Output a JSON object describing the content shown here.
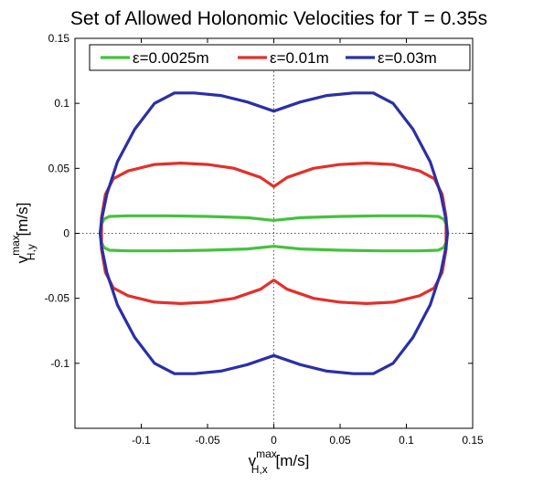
{
  "chart_data": {
    "type": "line",
    "title": "Set of Allowed Holonomic Velocities for T = 0.35s",
    "xlabel": {
      "base": "v",
      "sup": "max",
      "sub": "H,x",
      "unit": " [m/s]"
    },
    "ylabel": {
      "base": "v",
      "sup": "max",
      "sub": "H,y",
      "unit": " [m/s]"
    },
    "xlim": [
      -0.15,
      0.15
    ],
    "ylim": [
      -0.15,
      0.15
    ],
    "xticks": [
      -0.1,
      -0.05,
      0,
      0.05,
      0.1,
      0.15
    ],
    "xtick_labels": [
      "-0.1",
      "-0.05",
      "0",
      "0.05",
      "0.1",
      "0.15"
    ],
    "yticks": [
      0.15,
      0.1,
      0.05,
      0,
      -0.05,
      -0.1
    ],
    "ytick_labels": [
      "0.15",
      "0.1",
      "0.05",
      "0",
      "-0.05",
      "-0.1"
    ],
    "zero_lines": "dotted",
    "grid": false,
    "legend_position": "top",
    "series": [
      {
        "name": "ε=0.0025m",
        "color": "#44c23c",
        "x": [
          0,
          0.02,
          0.05,
          0.08,
          0.11,
          0.124,
          0.128,
          0.13,
          0.13,
          0.128,
          0.124,
          0.11,
          0.08,
          0.05,
          0.02,
          0,
          -0.02,
          -0.05,
          -0.08,
          -0.11,
          -0.124,
          -0.128,
          -0.13,
          -0.13,
          -0.128,
          -0.124,
          -0.11,
          -0.08,
          -0.05,
          -0.02,
          0
        ],
        "y": [
          0.01,
          0.012,
          0.013,
          0.0135,
          0.0135,
          0.013,
          0.011,
          0.007,
          -0.007,
          -0.011,
          -0.013,
          -0.0135,
          -0.0135,
          -0.013,
          -0.012,
          -0.01,
          -0.012,
          -0.013,
          -0.0135,
          -0.0135,
          -0.013,
          -0.011,
          -0.007,
          0.007,
          0.011,
          0.013,
          0.0135,
          0.0135,
          0.013,
          0.012,
          0.01
        ]
      },
      {
        "name": "ε=0.01m",
        "color": "#e2302c",
        "x": [
          0,
          0.01,
          0.03,
          0.05,
          0.07,
          0.09,
          0.11,
          0.121,
          0.127,
          0.13,
          0.13,
          0.127,
          0.121,
          0.11,
          0.09,
          0.07,
          0.05,
          0.03,
          0.01,
          0,
          -0.01,
          -0.03,
          -0.05,
          -0.07,
          -0.09,
          -0.11,
          -0.121,
          -0.127,
          -0.13,
          -0.13,
          -0.127,
          -0.121,
          -0.11,
          -0.09,
          -0.07,
          -0.05,
          -0.03,
          -0.01,
          0
        ],
        "y": [
          0.036,
          0.043,
          0.05,
          0.053,
          0.054,
          0.053,
          0.048,
          0.042,
          0.03,
          0.012,
          -0.012,
          -0.03,
          -0.042,
          -0.048,
          -0.053,
          -0.054,
          -0.053,
          -0.05,
          -0.043,
          -0.036,
          -0.043,
          -0.05,
          -0.053,
          -0.054,
          -0.053,
          -0.048,
          -0.042,
          -0.03,
          -0.012,
          0.012,
          0.03,
          0.042,
          0.048,
          0.053,
          0.054,
          0.053,
          0.05,
          0.043,
          0.036
        ]
      },
      {
        "name": "ε=0.03m",
        "color": "#2b2fa6",
        "x": [
          0,
          0.02,
          0.04,
          0.06,
          0.07,
          0.075,
          0.09,
          0.105,
          0.118,
          0.126,
          0.13,
          0.131,
          0.13,
          0.126,
          0.118,
          0.105,
          0.09,
          0.075,
          0.07,
          0.06,
          0.04,
          0.02,
          0,
          -0.02,
          -0.04,
          -0.06,
          -0.07,
          -0.075,
          -0.09,
          -0.105,
          -0.118,
          -0.126,
          -0.13,
          -0.131,
          -0.13,
          -0.126,
          -0.118,
          -0.105,
          -0.09,
          -0.075,
          -0.07,
          -0.06,
          -0.04,
          -0.02,
          0
        ],
        "y": [
          0.094,
          0.101,
          0.106,
          0.108,
          0.108,
          0.108,
          0.1,
          0.08,
          0.055,
          0.03,
          0.01,
          0,
          -0.01,
          -0.03,
          -0.055,
          -0.08,
          -0.1,
          -0.108,
          -0.108,
          -0.108,
          -0.106,
          -0.101,
          -0.094,
          -0.101,
          -0.106,
          -0.108,
          -0.108,
          -0.108,
          -0.1,
          -0.08,
          -0.055,
          -0.03,
          -0.01,
          0,
          0.01,
          0.03,
          0.055,
          0.08,
          0.1,
          0.108,
          0.108,
          0.108,
          0.106,
          0.101,
          0.094
        ]
      }
    ]
  }
}
